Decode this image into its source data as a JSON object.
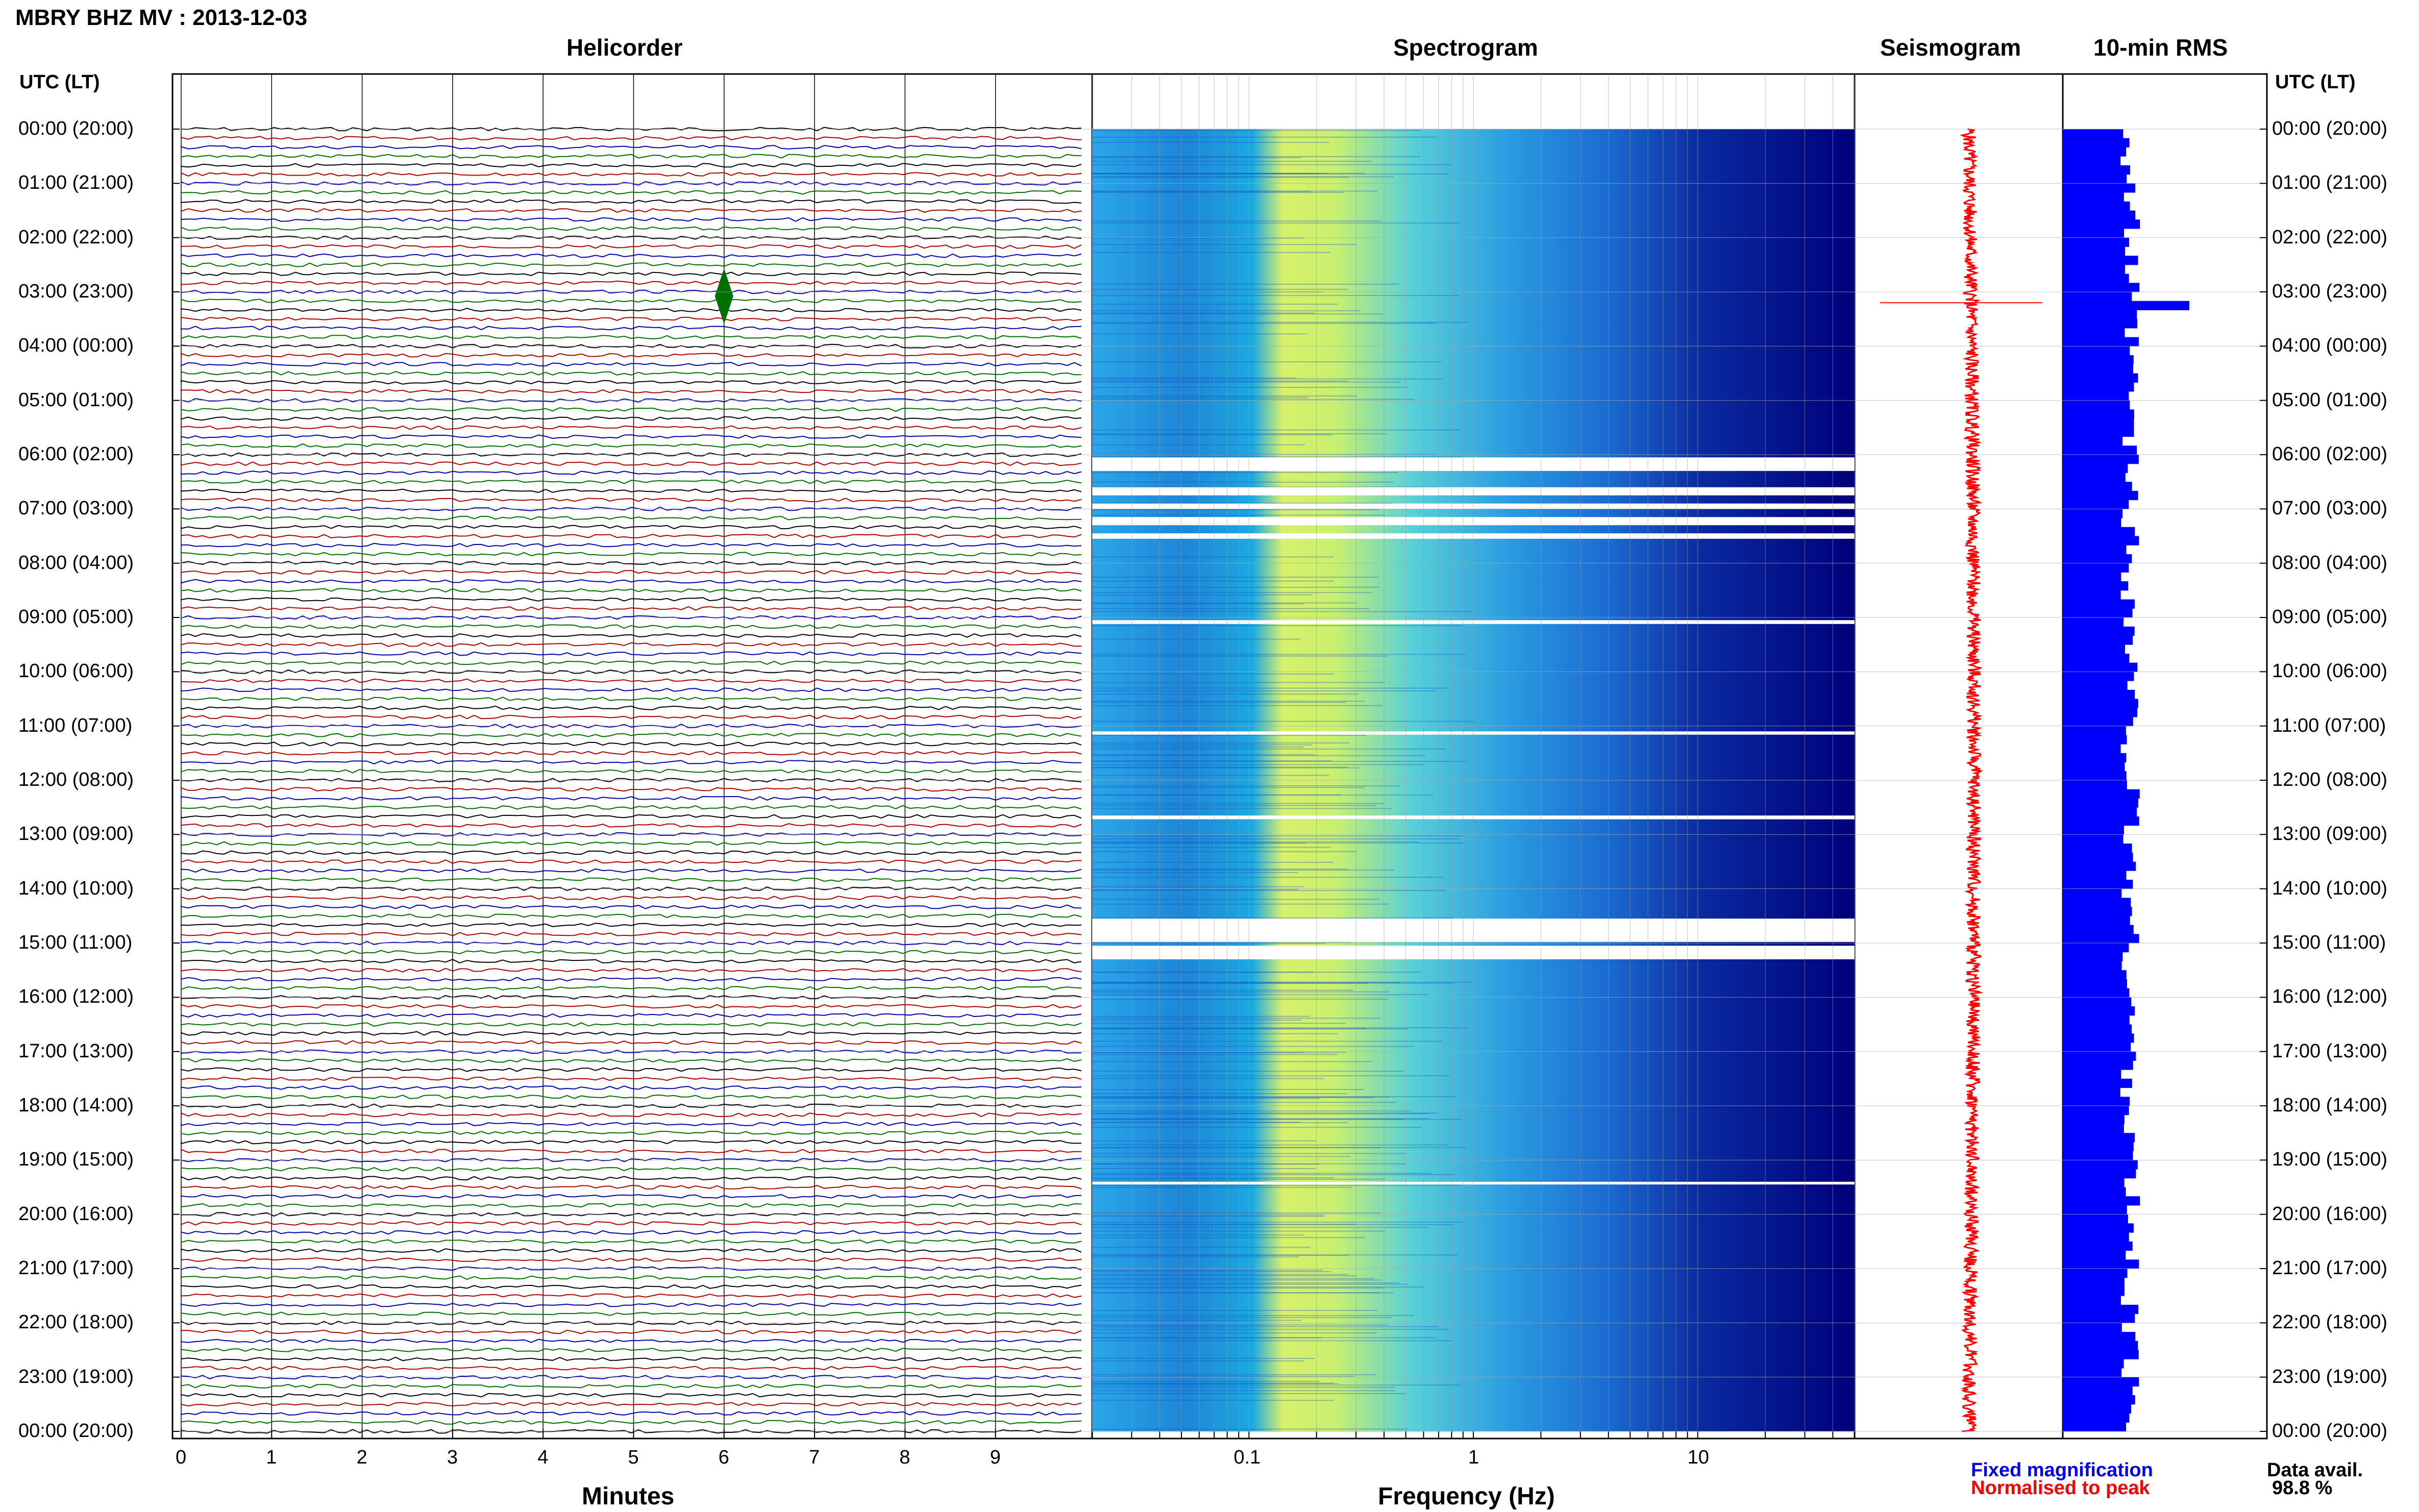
{
  "header": {
    "station_title": "MBRY BHZ MV : 2013-12-03",
    "utc_lt_left": "UTC (LT)",
    "utc_lt_right": "UTC (LT)"
  },
  "panels": {
    "helicorder": {
      "title": "Helicorder",
      "xlabel": "Minutes"
    },
    "spectrogram": {
      "title": "Spectrogram",
      "xlabel": "Frequency (Hz)"
    },
    "seismogram": {
      "title": "Seismogram"
    },
    "rms": {
      "title": "10-min RMS"
    }
  },
  "legend": {
    "fixed": "Fixed magnification",
    "normalised": "Normalised to peak",
    "fixed_color": "#0000ff",
    "normalised_color": "#ff0000"
  },
  "availability": {
    "label": "Data avail.",
    "value": "98.8 %"
  },
  "chart_data": {
    "type": "multi-panel seismic summary",
    "time_labels": [
      "00:00 (20:00)",
      "01:00 (21:00)",
      "02:00 (22:00)",
      "03:00 (23:00)",
      "04:00 (00:00)",
      "05:00 (01:00)",
      "06:00 (02:00)",
      "07:00 (03:00)",
      "08:00 (04:00)",
      "09:00 (05:00)",
      "10:00 (06:00)",
      "11:00 (07:00)",
      "12:00 (08:00)",
      "13:00 (09:00)",
      "14:00 (10:00)",
      "15:00 (11:00)",
      "16:00 (12:00)",
      "17:00 (13:00)",
      "18:00 (14:00)",
      "19:00 (15:00)",
      "20:00 (16:00)",
      "21:00 (17:00)",
      "22:00 (18:00)",
      "23:00 (19:00)",
      "00:00 (20:00)"
    ],
    "helicorder": {
      "minute_ticks": [
        "0",
        "1",
        "2",
        "3",
        "4",
        "5",
        "6",
        "7",
        "8",
        "9"
      ],
      "xlim": [
        0,
        10
      ],
      "trace_colors": [
        "#000000",
        "#b00000",
        "#0000b0",
        "#007000"
      ],
      "traces_per_hour": 6,
      "events": [
        {
          "hour": 3.08,
          "minute": 6.0,
          "color": "#007000"
        }
      ]
    },
    "spectrogram": {
      "xscale": "log",
      "xlim": [
        0.02,
        50
      ],
      "tick_labels": [
        "0.1",
        "1",
        "10"
      ],
      "tick_values": [
        0.1,
        1,
        10
      ],
      "gaps_hours": [
        [
          6.05,
          6.3
        ],
        [
          6.6,
          6.75
        ],
        [
          6.9,
          7.0
        ],
        [
          7.15,
          7.3
        ],
        [
          7.45,
          7.55
        ],
        [
          9.05,
          9.12
        ],
        [
          11.1,
          11.16
        ],
        [
          12.65,
          12.72
        ],
        [
          14.55,
          14.98
        ],
        [
          15.05,
          15.3
        ],
        [
          19.4,
          19.45
        ]
      ]
    },
    "rms": {
      "bin_minutes": 10,
      "xlim": [
        0,
        1
      ],
      "peak": {
        "hour": 3.2,
        "value": 0.62
      },
      "typical": 0.33
    }
  }
}
